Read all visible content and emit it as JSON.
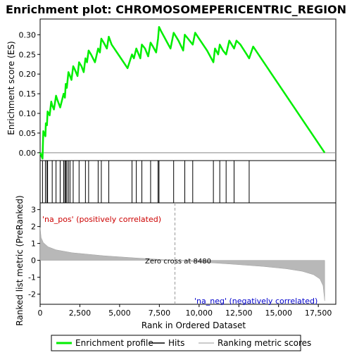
{
  "chart_data": {
    "type": "line",
    "title": "Enrichment plot: CHROMOSOMEPERICENTRIC_REGION",
    "top_panel": {
      "ylabel": "Enrichment score (ES)",
      "ylim": [
        -0.02,
        0.34
      ],
      "yticks": [
        0.0,
        0.05,
        0.1,
        0.15,
        0.2,
        0.25,
        0.3
      ],
      "ytick_labels": [
        "0.00",
        "0.05",
        "0.10",
        "0.15",
        "0.20",
        "0.25",
        "0.30"
      ],
      "series": [
        {
          "name": "Enrichment profile",
          "color": "#00ee00",
          "x": [
            0,
            150,
            200,
            330,
            360,
            430,
            470,
            600,
            700,
            760,
            870,
            1000,
            1080,
            1260,
            1480,
            1560,
            1610,
            1680,
            1780,
            1880,
            1970,
            2080,
            2200,
            2350,
            2450,
            2600,
            2740,
            2850,
            2950,
            3050,
            3200,
            3450,
            3650,
            3760,
            3850,
            4000,
            4200,
            4320,
            4500,
            5000,
            5500,
            5780,
            5900,
            6050,
            6150,
            6300,
            6400,
            6600,
            6800,
            6950,
            7100,
            7300,
            7420,
            7480,
            7600,
            7800,
            8000,
            8200,
            8400,
            8700,
            9000,
            9100,
            9300,
            9600,
            9750,
            10000,
            10500,
            10900,
            11000,
            11200,
            11300,
            11500,
            11700,
            11900,
            12200,
            12350,
            12600,
            13000,
            13150,
            13400,
            17900
          ],
          "y": [
            0.0,
            -0.015,
            0.055,
            0.042,
            0.075,
            0.07,
            0.105,
            0.095,
            0.13,
            0.12,
            0.11,
            0.145,
            0.135,
            0.115,
            0.15,
            0.14,
            0.175,
            0.165,
            0.205,
            0.195,
            0.185,
            0.22,
            0.21,
            0.195,
            0.23,
            0.22,
            0.205,
            0.24,
            0.23,
            0.26,
            0.25,
            0.23,
            0.265,
            0.255,
            0.29,
            0.28,
            0.265,
            0.295,
            0.275,
            0.245,
            0.215,
            0.25,
            0.24,
            0.265,
            0.255,
            0.24,
            0.275,
            0.265,
            0.245,
            0.28,
            0.27,
            0.255,
            0.29,
            0.32,
            0.31,
            0.295,
            0.28,
            0.265,
            0.305,
            0.285,
            0.26,
            0.3,
            0.29,
            0.275,
            0.305,
            0.29,
            0.26,
            0.23,
            0.265,
            0.25,
            0.275,
            0.26,
            0.25,
            0.285,
            0.265,
            0.285,
            0.275,
            0.25,
            0.24,
            0.27,
            0.0
          ]
        }
      ],
      "hits": [
        150,
        330,
        430,
        470,
        760,
        1000,
        1260,
        1480,
        1560,
        1610,
        1680,
        1780,
        1880,
        2080,
        2450,
        2850,
        3050,
        3650,
        3850,
        4320,
        5780,
        6050,
        6400,
        6950,
        7420,
        7480,
        8400,
        9100,
        9600,
        10900,
        11300,
        11700,
        12200,
        13150
      ]
    },
    "bottom_panel": {
      "ylabel": "Ranked list metric (PreRanked)",
      "xlabel": "Rank in Ordered Dataset",
      "ylim": [
        -2.6,
        3.4
      ],
      "yticks": [
        -2,
        -1,
        0,
        1,
        2,
        3
      ],
      "ytick_labels": [
        "-2",
        "-1",
        "0",
        "1",
        "2",
        "3"
      ],
      "xlim": [
        0,
        18600
      ],
      "xticks": [
        0,
        2500,
        5000,
        7500,
        10000,
        12500,
        15000,
        17500
      ],
      "xtick_labels": [
        "0",
        "2,500",
        "5,000",
        "7,500",
        "10,000",
        "12,500",
        "15,000",
        "17,500"
      ],
      "zero_cross_rank": 8480,
      "zero_cross_label": "Zero cross at 8480",
      "pos_label": "'na_pos' (positively correlated)",
      "neg_label": "'na_neg' (negatively correlated)",
      "pos_color": "#cc0000",
      "neg_color": "#0000cc",
      "metric_profile": {
        "x": [
          0,
          60,
          200,
          500,
          1000,
          2000,
          4000,
          6000,
          8480,
          10000,
          12000,
          14000,
          15500,
          16500,
          17200,
          17600,
          17800,
          17900
        ],
        "y": [
          1.95,
          1.35,
          1.05,
          0.8,
          0.62,
          0.45,
          0.27,
          0.14,
          0.0,
          -0.1,
          -0.22,
          -0.36,
          -0.5,
          -0.65,
          -0.85,
          -1.1,
          -1.5,
          -2.4
        ]
      }
    },
    "legend": {
      "placement": "bottom",
      "items": [
        {
          "label": "Enrichment profile",
          "color": "#00ee00",
          "kind": "line"
        },
        {
          "label": "Hits",
          "color": "#000000",
          "kind": "line"
        },
        {
          "label": "Ranking metric scores",
          "color": "#bbbbbb",
          "kind": "line"
        }
      ]
    },
    "n_ranks": 17900
  }
}
